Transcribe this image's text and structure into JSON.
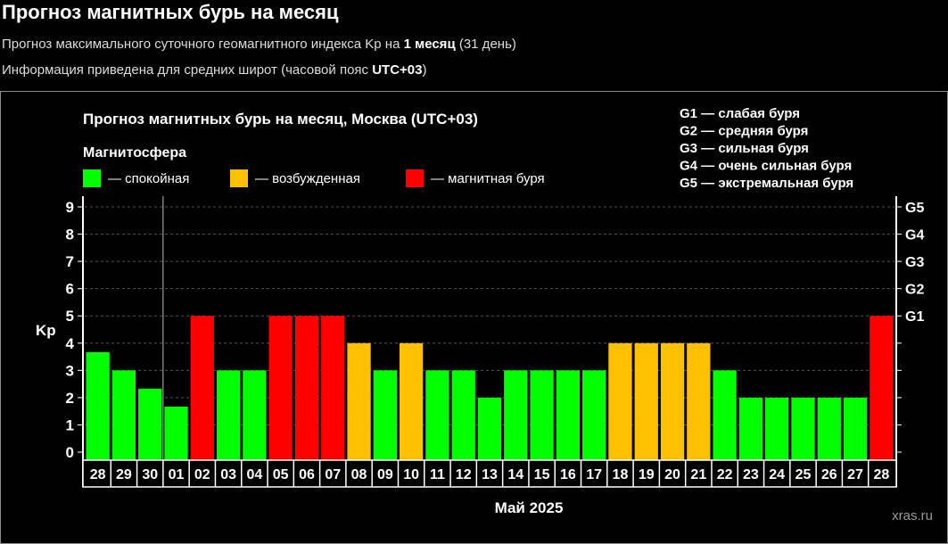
{
  "header": {
    "title": "Прогноз магнитных бурь на месяц",
    "line1_pre": "Прогноз максимального суточного геомагнитного индекса Kp на ",
    "line1_bold": "1 месяц",
    "line1_post": " (31 день)",
    "line2_pre": "Информация приведена для средних широт (часовой пояс ",
    "line2_bold": "UTC+03",
    "line2_post": ")"
  },
  "colors": {
    "calm": "#00ff00",
    "active": "#ffc000",
    "storm": "#ff0000",
    "background": "#000000",
    "grid": "#555555"
  },
  "chart_data": {
    "type": "bar",
    "title": "Прогноз магнитных бурь на месяц, Москва (UTC+03)",
    "legend_title": "Магнитосфера",
    "legend": [
      {
        "key": "calm",
        "label": "— спокойная"
      },
      {
        "key": "active",
        "label": "— возбужденная"
      },
      {
        "key": "storm",
        "label": "— магнитная буря"
      }
    ],
    "g_scale_legend": [
      "G1 — слабая буря",
      "G2 — средняя буря",
      "G3 — сильная буря",
      "G4 — очень сильная буря",
      "G5 — экстремальная буря"
    ],
    "ylabel": "Kp",
    "ylim": [
      0,
      9
    ],
    "yticks": [
      0,
      1,
      2,
      3,
      4,
      5,
      6,
      7,
      8,
      9
    ],
    "right_ticks": [
      {
        "value": 5,
        "label": "G1"
      },
      {
        "value": 6,
        "label": "G2"
      },
      {
        "value": 7,
        "label": "G3"
      },
      {
        "value": 8,
        "label": "G4"
      },
      {
        "value": 9,
        "label": "G5"
      }
    ],
    "xlabel": "Май 2025",
    "categories": [
      "28",
      "29",
      "30",
      "01",
      "02",
      "03",
      "04",
      "05",
      "06",
      "07",
      "08",
      "09",
      "10",
      "11",
      "12",
      "13",
      "14",
      "15",
      "16",
      "17",
      "18",
      "19",
      "20",
      "21",
      "22",
      "23",
      "24",
      "25",
      "26",
      "27",
      "28"
    ],
    "values": [
      3.67,
      3,
      2.33,
      1.67,
      5,
      3,
      3,
      5,
      5,
      5,
      4,
      3,
      4,
      3,
      3,
      2,
      3,
      3,
      3,
      3,
      4,
      4,
      4,
      4,
      3,
      2,
      2,
      2,
      2,
      2,
      5
    ],
    "levels": [
      "calm",
      "calm",
      "calm",
      "calm",
      "storm",
      "calm",
      "calm",
      "storm",
      "storm",
      "storm",
      "active",
      "calm",
      "active",
      "calm",
      "calm",
      "calm",
      "calm",
      "calm",
      "calm",
      "calm",
      "active",
      "active",
      "active",
      "active",
      "calm",
      "calm",
      "calm",
      "calm",
      "calm",
      "calm",
      "storm"
    ],
    "current_day_marker_after_index": 2,
    "grid": true
  },
  "watermark": "xras.ru"
}
